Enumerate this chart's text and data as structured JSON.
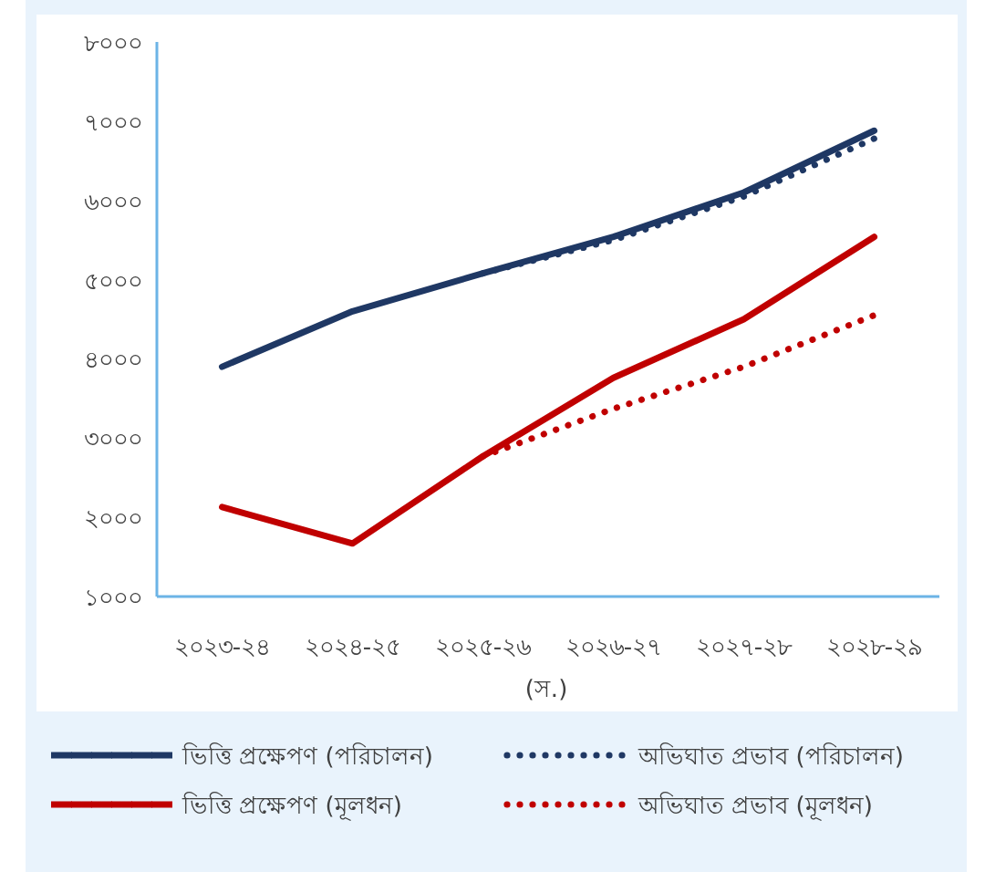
{
  "chart_data": {
    "type": "line",
    "xlabel": "(স.)",
    "categories": [
      "২০২৩-২৪",
      "২০২৪-২৫",
      "২০২৫-২৬",
      "২০২৬-২৭",
      "২০২৭-২৮",
      "২০২৮-২৯"
    ],
    "ylim": [
      1000,
      8000
    ],
    "yticks": [
      {
        "value": 1000,
        "label": "১০০০"
      },
      {
        "value": 2000,
        "label": "২০০০"
      },
      {
        "value": 3000,
        "label": "৩০০০"
      },
      {
        "value": 4000,
        "label": "৪০০০"
      },
      {
        "value": 5000,
        "label": "৫০০০"
      },
      {
        "value": 6000,
        "label": "৬০০০"
      },
      {
        "value": 7000,
        "label": "৭০০০"
      },
      {
        "value": 8000,
        "label": "৮০০০"
      }
    ],
    "grid": false,
    "legend": "bottom",
    "series": [
      {
        "name": "ভিত্তি প্রক্ষেপণ (পরিচালন)",
        "color": "#1f3864",
        "line_style": "solid",
        "values": [
          3900,
          4600,
          5080,
          5540,
          6100,
          6880
        ]
      },
      {
        "name": "অভিঘাত প্রভাব (পরিচালন)",
        "color": "#1f3864",
        "line_style": "dotted",
        "values": [
          null,
          null,
          5080,
          5500,
          6050,
          6780
        ]
      },
      {
        "name": "ভিত্তি প্রক্ষেপণ (মূলধন)",
        "color": "#c00000",
        "line_style": "solid",
        "values": [
          2130,
          1670,
          2770,
          3760,
          4500,
          5540
        ]
      },
      {
        "name": "অভিঘাত প্রভাব (মূলধন)",
        "color": "#c00000",
        "line_style": "dotted",
        "values": [
          null,
          null,
          2770,
          3370,
          3900,
          4550
        ]
      }
    ]
  }
}
